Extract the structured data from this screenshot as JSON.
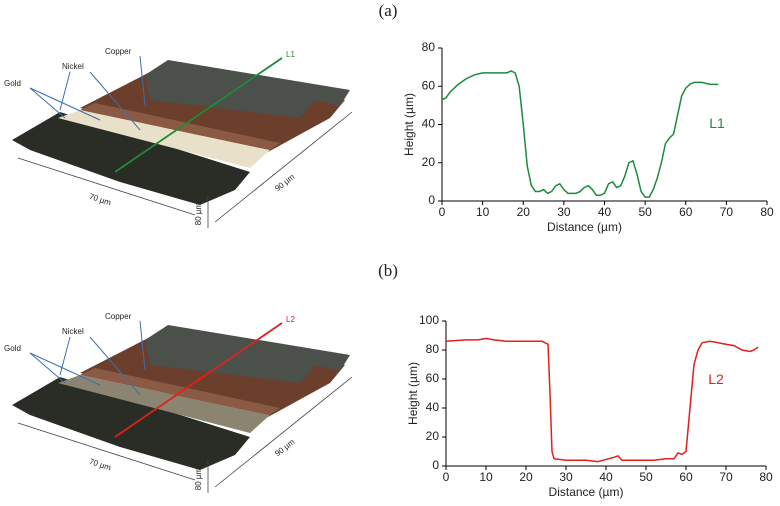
{
  "panels": [
    {
      "label": "(a)",
      "image": {
        "copper": "Copper",
        "nickel": "Nickel",
        "gold": "Gold",
        "line": "L1",
        "width": "70 µm",
        "depth": "90 µm",
        "height": "80 µm"
      }
    },
    {
      "label": "(b)",
      "image": {
        "copper": "Copper",
        "nickel": "Nickel",
        "gold": "Gold",
        "line": "L2",
        "width": "70 µm",
        "depth": "90 µm",
        "height": "80 µm"
      }
    }
  ],
  "chart_data": [
    {
      "type": "line",
      "xlabel": "Distance (µm)",
      "ylabel": "Height (µm)",
      "x": [
        0,
        1,
        2,
        4,
        6,
        8,
        10,
        12,
        14,
        16,
        17,
        18,
        19,
        20,
        21,
        22,
        23,
        24,
        25,
        26,
        27,
        28,
        29,
        30,
        31,
        32,
        33,
        34,
        35,
        36,
        37,
        38,
        39,
        40,
        41,
        42,
        43,
        44,
        45,
        46,
        47,
        48,
        49,
        50,
        51,
        52,
        53,
        54,
        55,
        56,
        57,
        58,
        59,
        60,
        61,
        62,
        63,
        64,
        66,
        68
      ],
      "series": [
        {
          "name": "L1",
          "color": "#1e8a3c",
          "values": [
            53,
            54,
            57,
            61,
            64,
            66,
            67,
            67,
            67,
            67,
            68,
            67,
            60,
            40,
            18,
            8,
            5,
            5,
            6,
            4,
            5,
            8,
            9,
            6,
            4,
            4,
            4,
            5,
            7,
            8,
            6,
            3,
            3,
            4,
            9,
            10,
            7,
            8,
            13,
            20,
            21,
            14,
            5,
            2,
            2,
            6,
            12,
            20,
            30,
            33,
            35,
            45,
            55,
            59,
            61,
            62,
            62,
            62,
            61,
            61
          ]
        }
      ],
      "xlim": [
        0,
        80
      ],
      "xticks": [
        0,
        10,
        20,
        30,
        40,
        50,
        60,
        70,
        80
      ],
      "ylim": [
        0,
        80
      ],
      "yticks": [
        0,
        20,
        40,
        60,
        80
      ],
      "grid": false,
      "legend": "right"
    },
    {
      "type": "line",
      "xlabel": "Distance (µm)",
      "ylabel": "Height (µm)",
      "x": [
        0,
        5,
        8,
        10,
        12,
        15,
        20,
        24,
        25.5,
        26,
        26.5,
        27,
        30,
        35,
        38,
        42,
        43,
        44,
        48,
        52,
        55,
        57,
        58,
        59,
        60,
        61,
        62,
        63,
        64,
        66,
        68,
        70,
        72,
        74,
        76,
        77,
        78
      ],
      "series": [
        {
          "name": "L2",
          "color": "#e0201b",
          "values": [
            86,
            87,
            87,
            88,
            87,
            86,
            86,
            86,
            84,
            50,
            10,
            5,
            4,
            4,
            3,
            6,
            7,
            4,
            4,
            4,
            5,
            5,
            9,
            8,
            10,
            40,
            70,
            80,
            85,
            86,
            85,
            84,
            83,
            80,
            79,
            80,
            82
          ]
        }
      ],
      "xlim": [
        0,
        80
      ],
      "xticks": [
        0,
        10,
        20,
        30,
        40,
        50,
        60,
        70,
        80
      ],
      "ylim": [
        0,
        100
      ],
      "yticks": [
        0,
        20,
        40,
        60,
        80,
        100
      ],
      "grid": false,
      "legend": "right"
    }
  ]
}
